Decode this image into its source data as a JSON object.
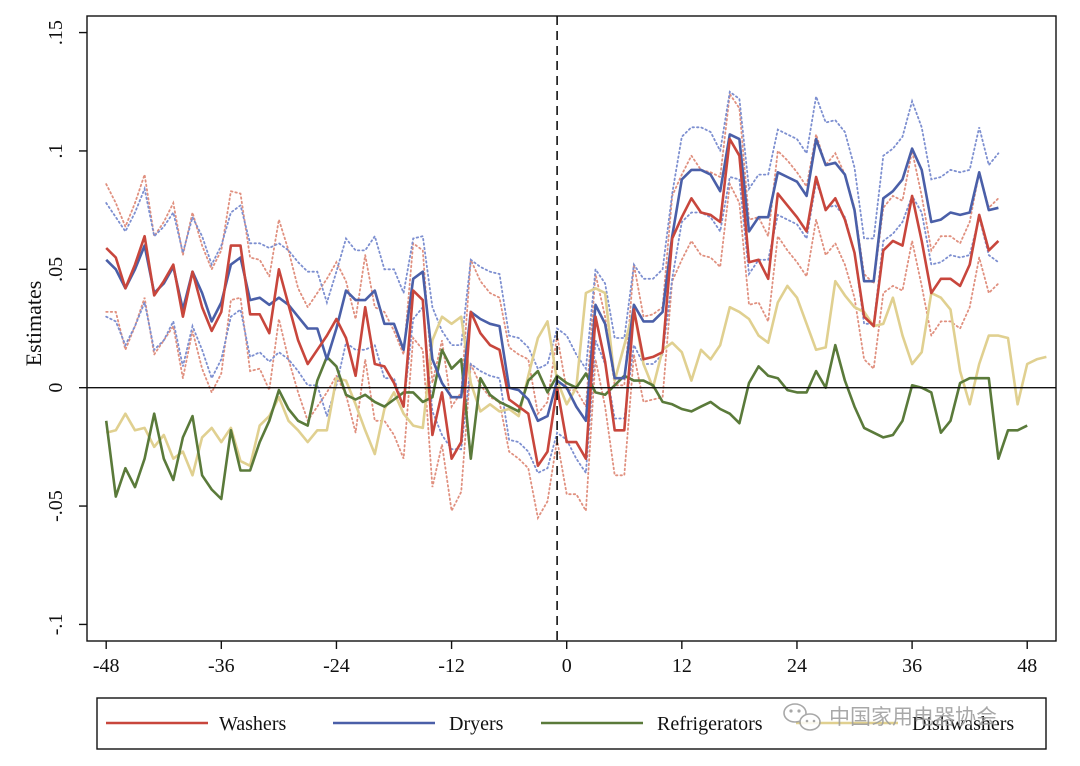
{
  "colors": {
    "washers": "#c8463c",
    "dryers": "#4a5fa8",
    "refrigerators": "#5a7a3a",
    "dishwashers": "#e0d090",
    "washers_ci": "#e0907f",
    "dryers_ci": "#7d8fd0"
  },
  "watermark": {
    "text": "中国家用电器协会",
    "icon": "wechat-icon"
  },
  "chart_data": {
    "type": "line",
    "title": "",
    "xlabel": "",
    "ylabel": "Estimates",
    "xlim": [
      -50,
      51
    ],
    "ylim": [
      -0.107,
      0.157
    ],
    "xticks": [
      -48,
      -36,
      -24,
      -12,
      0,
      12,
      24,
      36,
      48
    ],
    "xtick_labels": [
      "-48",
      "-36",
      "-24",
      "-12",
      "0",
      "12",
      "24",
      "36",
      "48"
    ],
    "yticks": [
      -0.1,
      -0.05,
      0,
      0.05,
      0.1,
      0.15
    ],
    "ytick_labels": [
      "-.1",
      "-.05",
      "0",
      ".05",
      ".1",
      ".15"
    ],
    "event_line_x": -1,
    "zero_line": true,
    "x_start": -48,
    "legend": {
      "position": "bottom",
      "entries": [
        "Washers",
        "Dryers",
        "Refrigerators",
        "Dishwashers"
      ]
    },
    "series": [
      {
        "name": "Washers",
        "color_key": "washers",
        "values": [
          0.059,
          0.055,
          0.042,
          0.052,
          0.064,
          0.039,
          0.045,
          0.052,
          0.03,
          0.049,
          0.034,
          0.024,
          0.032,
          0.06,
          0.06,
          0.031,
          0.031,
          0.023,
          0.05,
          0.035,
          0.02,
          0.01,
          0.016,
          0.022,
          0.029,
          0.021,
          0.005,
          0.034,
          0.01,
          0.009,
          0.002,
          -0.008,
          0.041,
          0.037,
          -0.02,
          -0.002,
          -0.03,
          -0.023,
          0.032,
          0.023,
          0.018,
          0.016,
          -0.005,
          -0.008,
          -0.011,
          -0.033,
          -0.027,
          0.0,
          -0.023,
          -0.023,
          -0.03,
          0.03,
          0.011,
          -0.018,
          -0.018,
          0.033,
          0.012,
          0.013,
          0.015,
          0.063,
          0.072,
          0.08,
          0.074,
          0.073,
          0.07,
          0.105,
          0.098,
          0.053,
          0.054,
          0.046,
          0.082,
          0.077,
          0.072,
          0.066,
          0.089,
          0.075,
          0.08,
          0.071,
          0.057,
          0.03,
          0.026,
          0.058,
          0.062,
          0.06,
          0.081,
          0.062,
          0.04,
          0.046,
          0.046,
          0.043,
          0.052,
          0.073,
          0.058,
          0.062
        ],
        "upper": [
          0.086,
          0.078,
          0.068,
          0.078,
          0.09,
          0.064,
          0.07,
          0.078,
          0.056,
          0.074,
          0.06,
          0.05,
          0.058,
          0.083,
          0.082,
          0.055,
          0.054,
          0.047,
          0.071,
          0.058,
          0.042,
          0.034,
          0.04,
          0.046,
          0.053,
          0.045,
          0.029,
          0.056,
          0.034,
          0.032,
          0.024,
          0.014,
          0.061,
          0.058,
          0.002,
          0.02,
          -0.008,
          -0.002,
          0.054,
          0.045,
          0.04,
          0.038,
          0.017,
          0.014,
          0.012,
          -0.011,
          -0.006,
          0.022,
          -0.001,
          -0.001,
          -0.008,
          0.048,
          0.03,
          0.001,
          0.001,
          0.052,
          0.03,
          0.031,
          0.034,
          0.081,
          0.09,
          0.098,
          0.092,
          0.091,
          0.089,
          0.124,
          0.118,
          0.071,
          0.072,
          0.064,
          0.1,
          0.096,
          0.091,
          0.085,
          0.107,
          0.094,
          0.099,
          0.09,
          0.076,
          0.048,
          0.044,
          0.076,
          0.081,
          0.079,
          0.1,
          0.081,
          0.058,
          0.064,
          0.064,
          0.061,
          0.07,
          0.091,
          0.076,
          0.08
        ],
        "lower": [
          0.032,
          0.032,
          0.016,
          0.026,
          0.038,
          0.014,
          0.02,
          0.026,
          0.004,
          0.024,
          0.008,
          -0.002,
          0.006,
          0.037,
          0.038,
          0.007,
          0.008,
          -0.001,
          0.029,
          0.012,
          -0.002,
          -0.014,
          -0.008,
          -0.002,
          0.005,
          -0.003,
          -0.019,
          0.012,
          -0.014,
          -0.014,
          -0.02,
          -0.03,
          0.021,
          0.016,
          -0.042,
          -0.024,
          -0.052,
          -0.044,
          0.01,
          0.001,
          -0.004,
          -0.006,
          -0.027,
          -0.03,
          -0.034,
          -0.055,
          -0.048,
          -0.022,
          -0.045,
          -0.045,
          -0.052,
          0.012,
          -0.008,
          -0.037,
          -0.037,
          0.014,
          -0.006,
          -0.005,
          -0.004,
          0.045,
          0.054,
          0.062,
          0.056,
          0.055,
          0.051,
          0.086,
          0.078,
          0.035,
          0.036,
          0.028,
          0.064,
          0.058,
          0.053,
          0.047,
          0.071,
          0.056,
          0.061,
          0.052,
          0.038,
          0.012,
          0.008,
          0.04,
          0.043,
          0.041,
          0.062,
          0.043,
          0.022,
          0.028,
          0.028,
          0.025,
          0.034,
          0.055,
          0.04,
          0.044
        ]
      },
      {
        "name": "Dryers",
        "color_key": "dryers",
        "values": [
          0.054,
          0.05,
          0.042,
          0.05,
          0.06,
          0.04,
          0.044,
          0.051,
          0.033,
          0.049,
          0.04,
          0.028,
          0.036,
          0.052,
          0.055,
          0.037,
          0.038,
          0.035,
          0.038,
          0.035,
          0.03,
          0.025,
          0.025,
          0.012,
          0.025,
          0.041,
          0.037,
          0.037,
          0.041,
          0.027,
          0.027,
          0.016,
          0.046,
          0.049,
          0.012,
          0.002,
          -0.004,
          -0.004,
          0.032,
          0.029,
          0.027,
          0.026,
          0.0,
          -0.001,
          -0.005,
          -0.014,
          -0.012,
          0.003,
          0.0,
          -0.008,
          -0.014,
          0.035,
          0.027,
          0.004,
          0.004,
          0.035,
          0.028,
          0.028,
          0.032,
          0.064,
          0.088,
          0.092,
          0.092,
          0.09,
          0.083,
          0.107,
          0.105,
          0.066,
          0.072,
          0.072,
          0.091,
          0.089,
          0.087,
          0.081,
          0.105,
          0.094,
          0.095,
          0.09,
          0.075,
          0.045,
          0.045,
          0.08,
          0.083,
          0.088,
          0.101,
          0.092,
          0.07,
          0.071,
          0.074,
          0.073,
          0.074,
          0.091,
          0.075,
          0.076
        ],
        "upper": [
          0.078,
          0.072,
          0.066,
          0.074,
          0.084,
          0.064,
          0.068,
          0.074,
          0.057,
          0.072,
          0.064,
          0.052,
          0.06,
          0.074,
          0.077,
          0.061,
          0.061,
          0.059,
          0.061,
          0.058,
          0.053,
          0.049,
          0.049,
          0.036,
          0.049,
          0.063,
          0.058,
          0.058,
          0.064,
          0.05,
          0.05,
          0.04,
          0.063,
          0.064,
          0.034,
          0.024,
          0.018,
          0.018,
          0.054,
          0.051,
          0.049,
          0.048,
          0.022,
          0.021,
          0.017,
          0.008,
          0.01,
          0.025,
          0.022,
          0.014,
          0.008,
          0.05,
          0.044,
          0.021,
          0.021,
          0.052,
          0.046,
          0.046,
          0.05,
          0.082,
          0.106,
          0.11,
          0.11,
          0.108,
          0.1,
          0.125,
          0.122,
          0.084,
          0.09,
          0.09,
          0.109,
          0.107,
          0.105,
          0.099,
          0.123,
          0.112,
          0.113,
          0.108,
          0.093,
          0.063,
          0.063,
          0.098,
          0.101,
          0.106,
          0.121,
          0.11,
          0.088,
          0.089,
          0.092,
          0.091,
          0.092,
          0.11,
          0.094,
          0.099
        ],
        "lower": [
          0.03,
          0.028,
          0.018,
          0.026,
          0.036,
          0.016,
          0.02,
          0.028,
          0.009,
          0.026,
          0.016,
          0.004,
          0.012,
          0.03,
          0.033,
          0.013,
          0.015,
          0.011,
          0.015,
          0.012,
          0.007,
          0.001,
          0.001,
          -0.012,
          0.001,
          0.019,
          0.016,
          0.016,
          0.018,
          0.004,
          0.004,
          -0.008,
          0.029,
          0.034,
          -0.01,
          -0.02,
          -0.026,
          -0.026,
          0.01,
          0.007,
          0.005,
          0.004,
          -0.022,
          -0.023,
          -0.027,
          -0.036,
          -0.034,
          -0.019,
          -0.022,
          -0.03,
          -0.036,
          0.02,
          0.01,
          -0.013,
          -0.013,
          0.018,
          0.01,
          0.01,
          0.014,
          0.046,
          0.07,
          0.074,
          0.074,
          0.072,
          0.066,
          0.089,
          0.088,
          0.048,
          0.054,
          0.054,
          0.073,
          0.071,
          0.069,
          0.063,
          0.087,
          0.076,
          0.077,
          0.072,
          0.057,
          0.027,
          0.027,
          0.062,
          0.065,
          0.07,
          0.081,
          0.074,
          0.052,
          0.053,
          0.056,
          0.055,
          0.056,
          0.072,
          0.056,
          0.053
        ]
      },
      {
        "name": "Refrigerators",
        "color_key": "refrigerators",
        "values": [
          -0.014,
          -0.046,
          -0.034,
          -0.042,
          -0.03,
          -0.011,
          -0.03,
          -0.039,
          -0.021,
          -0.012,
          -0.037,
          -0.043,
          -0.047,
          -0.018,
          -0.035,
          -0.035,
          -0.023,
          -0.014,
          -0.001,
          -0.009,
          -0.014,
          -0.016,
          0.003,
          0.013,
          0.009,
          -0.003,
          -0.005,
          -0.003,
          -0.006,
          -0.008,
          -0.005,
          -0.002,
          -0.002,
          -0.006,
          -0.004,
          0.016,
          0.008,
          0.012,
          -0.03,
          0.004,
          -0.003,
          -0.006,
          -0.008,
          -0.01,
          0.003,
          0.007,
          -0.002,
          0.005,
          0.002,
          0.0,
          0.006,
          -0.002,
          -0.003,
          0.001,
          0.005,
          0.003,
          0.003,
          0.001,
          -0.006,
          -0.007,
          -0.009,
          -0.01,
          -0.008,
          -0.006,
          -0.009,
          -0.011,
          -0.015,
          0.002,
          0.009,
          0.005,
          0.004,
          -0.001,
          -0.002,
          -0.002,
          0.007,
          0.0,
          0.018,
          0.003,
          -0.008,
          -0.017,
          -0.019,
          -0.021,
          -0.02,
          -0.014,
          0.001,
          0.0,
          -0.002,
          -0.019,
          -0.014,
          0.002,
          0.004,
          0.004,
          0.004,
          -0.03,
          -0.018,
          -0.018,
          -0.016
        ]
      },
      {
        "name": "Dishwashers",
        "color_key": "dishwashers",
        "values": [
          -0.019,
          -0.018,
          -0.011,
          -0.018,
          -0.017,
          -0.025,
          -0.02,
          -0.03,
          -0.027,
          -0.037,
          -0.021,
          -0.017,
          -0.023,
          -0.017,
          -0.031,
          -0.033,
          -0.016,
          -0.012,
          -0.004,
          -0.014,
          -0.018,
          -0.023,
          -0.018,
          -0.018,
          0.004,
          0.003,
          -0.007,
          -0.018,
          -0.028,
          -0.009,
          -0.002,
          -0.011,
          -0.016,
          -0.017,
          0.02,
          0.03,
          0.027,
          0.03,
          0.002,
          -0.01,
          -0.007,
          -0.01,
          -0.009,
          -0.012,
          0.005,
          0.021,
          0.028,
          0.003,
          -0.007,
          0.0,
          0.04,
          0.042,
          0.04,
          0.003,
          0.018,
          0.033,
          0.01,
          0.0,
          0.016,
          0.019,
          0.015,
          0.003,
          0.016,
          0.012,
          0.018,
          0.034,
          0.032,
          0.029,
          0.022,
          0.019,
          0.036,
          0.043,
          0.038,
          0.027,
          0.016,
          0.017,
          0.045,
          0.039,
          0.034,
          0.032,
          0.026,
          0.027,
          0.038,
          0.022,
          0.01,
          0.015,
          0.04,
          0.038,
          0.033,
          0.007,
          -0.007,
          0.01,
          0.022,
          0.022,
          0.021,
          -0.007,
          0.01,
          0.012,
          0.013
        ]
      }
    ]
  }
}
